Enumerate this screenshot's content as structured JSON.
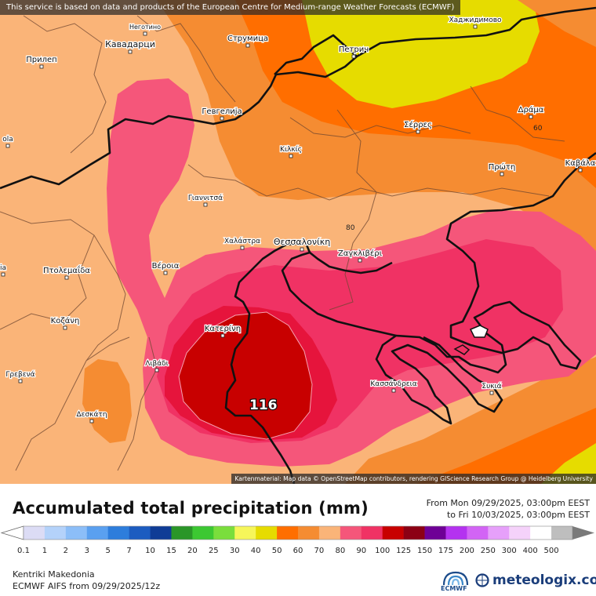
{
  "map": {
    "attribution_top": "This service is based on data and products of the European Centre for Medium-range Weather Forecasts (ECMWF)",
    "attribution_bottom": "Kartenmaterial: Map data © OpenStreetMap contributors, rendering GIScience Research Group @ Heidelberg University",
    "peak_value": "116",
    "isoline_label_1": "80",
    "isoline_label_2": "60",
    "places": [
      "Неготино",
      "Кавадарци",
      "Прилеп",
      "Струмица",
      "Петрич",
      "Хаджидимово",
      "Гевгелија",
      "Σέρρες",
      "Δράμα",
      "Κιλκίς",
      "Πρώτη",
      "Καβάλα",
      "Γιαννιτσά",
      "Χαλάστρα",
      "Θεσσαλονίκη",
      "Ζαγκλιβέρι",
      "Βέροια",
      "Πτολεμαΐδα",
      "Κοζάνη",
      "Κατερίνη",
      "Λιβάδι",
      "Γρεβενά",
      "Δεσκάτη",
      "Κασσάνδρεια",
      "Συκιά",
      "ola",
      "ia"
    ]
  },
  "title": "Accumulated total precipitation (mm)",
  "period": {
    "from": "From Mon 09/29/2025, 03:00pm EEST",
    "to": "to Fri 10/03/2025, 03:00pm EEST"
  },
  "legend": {
    "values": [
      "0.1",
      "1",
      "2",
      "3",
      "5",
      "7",
      "10",
      "15",
      "20",
      "25",
      "30",
      "40",
      "50",
      "60",
      "70",
      "80",
      "90",
      "100",
      "125",
      "150",
      "175",
      "200",
      "250",
      "300",
      "400",
      "500"
    ],
    "colors": [
      "#dcdcf5",
      "#b4d2fa",
      "#8cbef8",
      "#5aa0f0",
      "#2d7ddc",
      "#1c5cc0",
      "#0f3c96",
      "#2a9628",
      "#3cc832",
      "#7ade3c",
      "#f6f65a",
      "#e6dc00",
      "#ff6e00",
      "#f58c32",
      "#fab478",
      "#f5567a",
      "#f03264",
      "#c80000",
      "#8c0014",
      "#6e0096",
      "#b432f0",
      "#d264f5",
      "#e6a0fa",
      "#f5d2fa",
      "#ffffff",
      "#bebebe"
    ]
  },
  "footer": {
    "region": "Kentriki Makedonia",
    "model": "ECMWF AIFS from  09/29/2025/12z"
  },
  "logos": {
    "ecmwf": "ECMWF",
    "meteologix": "meteologix.com"
  }
}
